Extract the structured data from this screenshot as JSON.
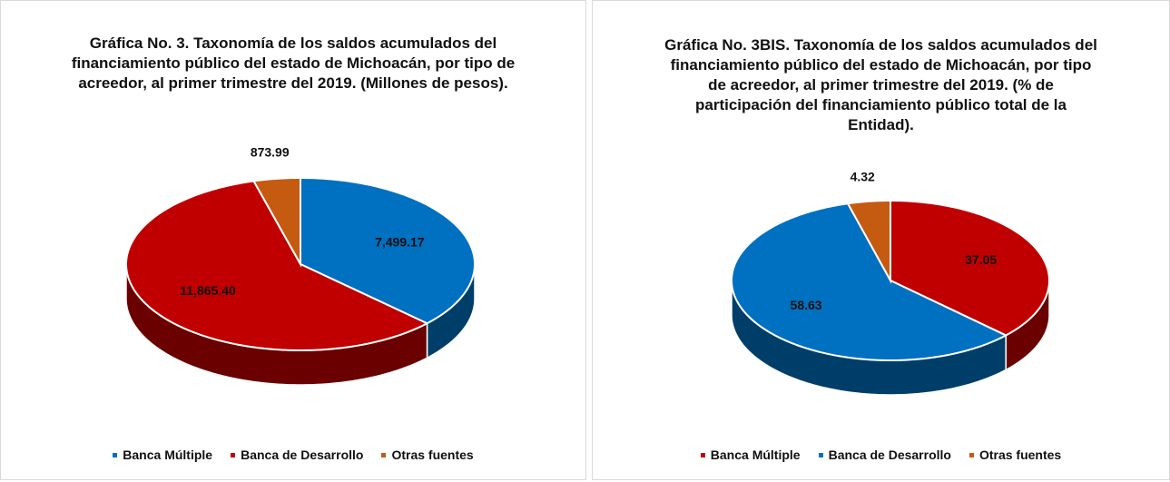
{
  "chart_data": [
    {
      "type": "pie",
      "title": "Gráfica No. 3. Taxonomía de los saldos acumulados del financiamiento público del estado de Michoacán, por tipo de acreedor, al primer trimestre del 2019. (Millones de pesos).",
      "categories": [
        "Banca Múltiple",
        "Banca de Desarrollo",
        "Otras fuentes"
      ],
      "values": [
        7499.17,
        11865.4,
        873.99
      ],
      "value_labels": [
        "7,499.17",
        "11,865.40",
        "873.99"
      ],
      "colors": [
        "#0070c0",
        "#c00000",
        "#c55a11"
      ]
    },
    {
      "type": "pie",
      "title": "Gráfica No. 3BIS. Taxonomía de los saldos acumulados del financiamiento público del estado de Michoacán, por tipo de acreedor, al primer trimestre del 2019. (% de participación del financiamiento público total de la Entidad).",
      "categories": [
        "Banca Múltiple",
        "Banca de Desarrollo",
        "Otras fuentes"
      ],
      "values": [
        37.05,
        58.63,
        4.32
      ],
      "colors": [
        "#c00000",
        "#0070c0",
        "#c55a11"
      ]
    }
  ]
}
